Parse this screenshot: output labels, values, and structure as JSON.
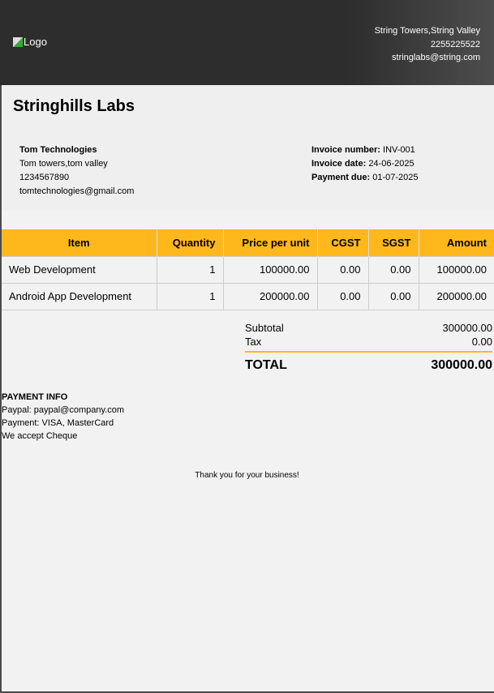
{
  "header": {
    "logo_alt": "Logo",
    "address": "String Towers,String Valley",
    "phone": "2255225522",
    "email": "stringlabs@string.com"
  },
  "company": "Stringhills Labs",
  "client": {
    "name": "Tom Technologies",
    "address": "Tom towers,tom valley",
    "phone": "1234567890",
    "email": "tomtechnologies@gmail.com"
  },
  "invoice": {
    "number_label": "Invoice number:",
    "number": "INV-001",
    "date_label": "Invoice date:",
    "date": "24-06-2025",
    "due_label": "Payment due:",
    "due": "01-07-2025"
  },
  "table": {
    "headers": [
      "Item",
      "Quantity",
      "Price per unit",
      "CGST",
      "SGST",
      "Amount"
    ],
    "rows": [
      [
        "Web Development",
        "1",
        "100000.00",
        "0.00",
        "0.00",
        "100000.00"
      ],
      [
        "Android App Development",
        "1",
        "200000.00",
        "0.00",
        "0.00",
        "200000.00"
      ]
    ]
  },
  "totals": {
    "subtotal_label": "Subtotal",
    "subtotal": "300000.00",
    "tax_label": "Tax",
    "tax": "0.00",
    "total_label": "TOTAL",
    "total": "300000.00"
  },
  "payment": {
    "title": "PAYMENT INFO",
    "lines": [
      "Paypal: paypal@company.com",
      "Payment: VISA, MasterCard",
      "We accept Cheque"
    ]
  },
  "thanks": "Thank you for your business!",
  "colors": {
    "accent": "#ffb81c",
    "header_bg": "#2d2d2d"
  }
}
